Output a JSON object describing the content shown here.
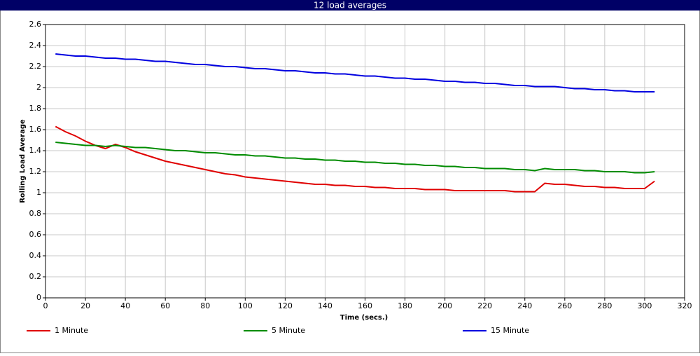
{
  "chart_data": {
    "type": "line",
    "title": "12 load averages",
    "x_label": "Time (secs.)",
    "y_label": "Rolling Load Average",
    "xlim": [
      0,
      320
    ],
    "xticks": [
      0,
      20,
      40,
      60,
      80,
      100,
      120,
      140,
      160,
      180,
      200,
      220,
      240,
      260,
      280,
      300,
      320
    ],
    "ylim": [
      0,
      2.6
    ],
    "yticks": [
      0,
      0.2,
      0.4,
      0.6,
      0.8,
      1,
      1.2,
      1.4,
      1.6,
      1.8,
      2,
      2.2,
      2.4,
      2.6
    ],
    "grid": true,
    "legend": "bottom",
    "x": [
      5,
      10,
      15,
      20,
      25,
      30,
      35,
      40,
      45,
      50,
      55,
      60,
      65,
      70,
      75,
      80,
      85,
      90,
      95,
      100,
      105,
      110,
      115,
      120,
      125,
      130,
      135,
      140,
      145,
      150,
      155,
      160,
      165,
      170,
      175,
      180,
      185,
      190,
      195,
      200,
      205,
      210,
      215,
      220,
      225,
      230,
      235,
      240,
      245,
      250,
      255,
      260,
      265,
      270,
      275,
      280,
      285,
      290,
      295,
      300,
      305
    ],
    "series": [
      {
        "name": "1 Minute",
        "color": "#e00000",
        "values": [
          1.63,
          1.58,
          1.54,
          1.49,
          1.45,
          1.42,
          1.46,
          1.43,
          1.39,
          1.36,
          1.33,
          1.3,
          1.28,
          1.26,
          1.24,
          1.22,
          1.2,
          1.18,
          1.17,
          1.15,
          1.14,
          1.13,
          1.12,
          1.11,
          1.1,
          1.09,
          1.08,
          1.08,
          1.07,
          1.07,
          1.06,
          1.06,
          1.05,
          1.05,
          1.04,
          1.04,
          1.04,
          1.03,
          1.03,
          1.03,
          1.02,
          1.02,
          1.02,
          1.02,
          1.02,
          1.02,
          1.01,
          1.01,
          1.01,
          1.09,
          1.08,
          1.08,
          1.07,
          1.06,
          1.06,
          1.05,
          1.05,
          1.04,
          1.04,
          1.04,
          1.11
        ]
      },
      {
        "name": "5 Minute",
        "color": "#008c00",
        "values": [
          1.48,
          1.47,
          1.46,
          1.45,
          1.45,
          1.44,
          1.45,
          1.44,
          1.43,
          1.43,
          1.42,
          1.41,
          1.4,
          1.4,
          1.39,
          1.38,
          1.38,
          1.37,
          1.36,
          1.36,
          1.35,
          1.35,
          1.34,
          1.33,
          1.33,
          1.32,
          1.32,
          1.31,
          1.31,
          1.3,
          1.3,
          1.29,
          1.29,
          1.28,
          1.28,
          1.27,
          1.27,
          1.26,
          1.26,
          1.25,
          1.25,
          1.24,
          1.24,
          1.23,
          1.23,
          1.23,
          1.22,
          1.22,
          1.21,
          1.23,
          1.22,
          1.22,
          1.22,
          1.21,
          1.21,
          1.2,
          1.2,
          1.2,
          1.19,
          1.19,
          1.2
        ]
      },
      {
        "name": "15 Minute",
        "color": "#0000e0",
        "values": [
          2.32,
          2.31,
          2.3,
          2.3,
          2.29,
          2.28,
          2.28,
          2.27,
          2.27,
          2.26,
          2.25,
          2.25,
          2.24,
          2.23,
          2.22,
          2.22,
          2.21,
          2.2,
          2.2,
          2.19,
          2.18,
          2.18,
          2.17,
          2.16,
          2.16,
          2.15,
          2.14,
          2.14,
          2.13,
          2.13,
          2.12,
          2.11,
          2.11,
          2.1,
          2.09,
          2.09,
          2.08,
          2.08,
          2.07,
          2.06,
          2.06,
          2.05,
          2.05,
          2.04,
          2.04,
          2.03,
          2.02,
          2.02,
          2.01,
          2.01,
          2.01,
          2.0,
          1.99,
          1.99,
          1.98,
          1.98,
          1.97,
          1.97,
          1.96,
          1.96,
          1.96
        ]
      }
    ]
  }
}
